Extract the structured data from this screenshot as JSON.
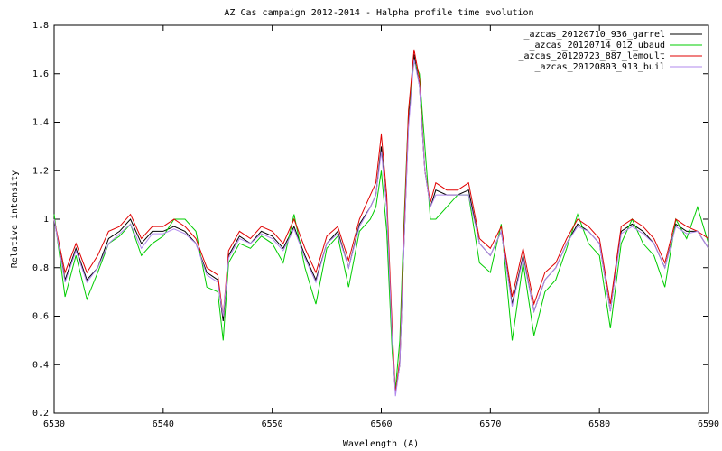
{
  "chart_data": {
    "type": "line",
    "title": "AZ Cas campaign 2012-2014 - Halpha profile time evolution",
    "x_label": "Wavelength (A)",
    "y_label": "Relative intensity",
    "x": [
      6530,
      6531,
      6532,
      6533,
      6534,
      6535,
      6536,
      6537,
      6538,
      6539,
      6540,
      6541,
      6542,
      6543,
      6544,
      6545,
      6545.5,
      6546,
      6547,
      6548,
      6549,
      6550,
      6551,
      6552,
      6553,
      6554,
      6555,
      6556,
      6557,
      6558,
      6559,
      6559.5,
      6560,
      6560.5,
      6561,
      6561.3,
      6561.7,
      6562,
      6562.5,
      6563,
      6563.5,
      6564,
      6564.5,
      6565,
      6566,
      6567,
      6568,
      6569,
      6570,
      6571,
      6572,
      6573,
      6574,
      6575,
      6576,
      6577,
      6578,
      6579,
      6580,
      6581,
      6582,
      6583,
      6584,
      6585,
      6586,
      6587,
      6588,
      6589,
      6590
    ],
    "series": [
      {
        "name": "_azcas_20120710_936_garrel",
        "color": "#000000",
        "values": [
          1.0,
          0.75,
          0.88,
          0.75,
          0.8,
          0.92,
          0.95,
          1.0,
          0.9,
          0.95,
          0.95,
          0.97,
          0.95,
          0.9,
          0.78,
          0.75,
          0.58,
          0.85,
          0.93,
          0.9,
          0.95,
          0.93,
          0.88,
          0.97,
          0.85,
          0.75,
          0.9,
          0.95,
          0.8,
          0.98,
          1.05,
          1.1,
          1.3,
          1.05,
          0.5,
          0.28,
          0.4,
          0.8,
          1.4,
          1.68,
          1.55,
          1.2,
          1.05,
          1.12,
          1.1,
          1.1,
          1.12,
          0.9,
          0.85,
          0.95,
          0.65,
          0.85,
          0.62,
          0.75,
          0.8,
          0.9,
          0.98,
          0.95,
          0.9,
          0.62,
          0.95,
          0.98,
          0.95,
          0.9,
          0.8,
          0.98,
          0.95,
          0.95,
          0.88
        ]
      },
      {
        "name": "_azcas_20120714_012_ubaud",
        "color": "#00cc00",
        "values": [
          1.02,
          0.68,
          0.85,
          0.67,
          0.78,
          0.9,
          0.93,
          0.98,
          0.85,
          0.9,
          0.93,
          1.0,
          1.0,
          0.95,
          0.72,
          0.7,
          0.5,
          0.82,
          0.9,
          0.88,
          0.93,
          0.9,
          0.82,
          1.02,
          0.8,
          0.65,
          0.88,
          0.93,
          0.72,
          0.95,
          1.0,
          1.05,
          1.2,
          0.95,
          0.45,
          0.3,
          0.5,
          0.9,
          1.45,
          1.65,
          1.6,
          1.3,
          1.0,
          1.0,
          1.05,
          1.1,
          1.1,
          0.82,
          0.78,
          0.98,
          0.5,
          0.82,
          0.52,
          0.7,
          0.75,
          0.88,
          1.02,
          0.9,
          0.85,
          0.55,
          0.9,
          1.0,
          0.9,
          0.85,
          0.72,
          1.0,
          0.92,
          1.05,
          0.9
        ]
      },
      {
        "name": "_azcas_20120723_887_lemoult",
        "color": "#e00000",
        "values": [
          1.0,
          0.78,
          0.9,
          0.78,
          0.85,
          0.95,
          0.97,
          1.02,
          0.92,
          0.97,
          0.97,
          1.0,
          0.97,
          0.92,
          0.8,
          0.77,
          0.6,
          0.87,
          0.95,
          0.92,
          0.97,
          0.95,
          0.9,
          1.0,
          0.88,
          0.78,
          0.93,
          0.97,
          0.83,
          1.0,
          1.1,
          1.15,
          1.35,
          1.1,
          0.55,
          0.28,
          0.42,
          0.85,
          1.45,
          1.7,
          1.58,
          1.2,
          1.07,
          1.15,
          1.12,
          1.12,
          1.15,
          0.92,
          0.88,
          0.97,
          0.68,
          0.88,
          0.65,
          0.78,
          0.82,
          0.92,
          1.0,
          0.97,
          0.92,
          0.65,
          0.97,
          1.0,
          0.97,
          0.92,
          0.82,
          1.0,
          0.97,
          0.95,
          0.92
        ]
      },
      {
        "name": "_azcas_20120803_913_buil",
        "color": "#b088ee",
        "values": [
          1.0,
          0.74,
          0.87,
          0.74,
          0.8,
          0.9,
          0.94,
          0.98,
          0.88,
          0.94,
          0.94,
          0.96,
          0.94,
          0.9,
          0.77,
          0.74,
          0.6,
          0.84,
          0.92,
          0.9,
          0.94,
          0.92,
          0.87,
          0.96,
          0.84,
          0.74,
          0.9,
          0.94,
          0.8,
          0.97,
          1.05,
          1.1,
          1.28,
          1.05,
          0.5,
          0.27,
          0.4,
          0.8,
          1.38,
          1.66,
          1.55,
          1.2,
          1.05,
          1.1,
          1.1,
          1.1,
          1.1,
          0.9,
          0.85,
          0.95,
          0.64,
          0.84,
          0.62,
          0.75,
          0.8,
          0.9,
          0.97,
          0.95,
          0.9,
          0.62,
          0.94,
          0.97,
          0.94,
          0.9,
          0.8,
          0.97,
          0.94,
          0.95,
          0.88
        ]
      }
    ],
    "xlim": [
      6530,
      6590
    ],
    "xticks": [
      6530,
      6540,
      6550,
      6560,
      6570,
      6580,
      6590
    ],
    "ylim": [
      0.2,
      1.8
    ],
    "yticks": [
      0.2,
      0.4,
      0.6,
      0.8,
      1,
      1.2,
      1.4,
      1.6,
      1.8
    ],
    "legend": "top-right",
    "grid": false
  }
}
